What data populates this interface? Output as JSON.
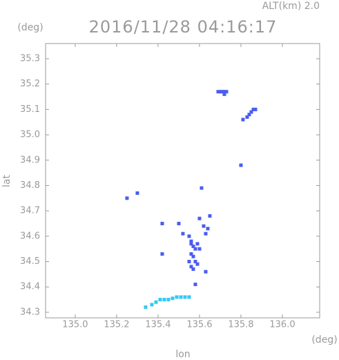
{
  "chart_data": {
    "type": "scatter",
    "header": "ALT(km) 2.0",
    "title": "2016/11/28 04:16:17",
    "y_unit": "(deg)",
    "x_unit": "(deg)",
    "xlabel": "lon",
    "ylabel": "lat",
    "xlim": [
      134.857,
      136.18
    ],
    "ylim": [
      34.278,
      35.36
    ],
    "xticks": [
      {
        "value": 135,
        "label": "135.0"
      },
      135.2,
      135.4,
      135.6,
      135.8,
      {
        "value": 136,
        "label": "136.0"
      }
    ],
    "yticks": [
      35.3,
      35.2,
      35.1,
      {
        "value": 35,
        "label": "35.0"
      },
      34.9,
      34.8,
      34.7,
      34.6,
      34.5,
      34.4,
      34.3
    ],
    "series": [
      {
        "color": "#4a5cf2",
        "x": [
          135.69,
          135.7,
          135.71,
          135.72,
          135.73,
          135.72,
          135.81,
          135.83,
          135.84,
          135.85,
          135.86,
          135.87,
          135.8,
          135.61,
          135.25,
          135.3,
          135.42,
          135.5,
          135.52,
          135.6,
          135.62,
          135.64,
          135.65,
          135.63,
          135.55,
          135.56,
          135.57,
          135.58,
          135.59,
          135.56,
          135.57,
          135.58,
          135.55,
          135.56,
          135.57,
          135.59,
          135.6,
          135.56,
          135.42,
          135.63,
          135.58
        ],
        "values": [
          35.17,
          35.17,
          35.17,
          35.17,
          35.17,
          35.16,
          35.06,
          35.07,
          35.08,
          35.09,
          35.1,
          35.1,
          34.88,
          34.79,
          34.75,
          34.77,
          34.65,
          34.65,
          34.61,
          34.67,
          34.64,
          34.63,
          34.68,
          34.61,
          34.6,
          34.58,
          34.56,
          34.55,
          34.57,
          34.53,
          34.52,
          34.5,
          34.5,
          34.48,
          34.47,
          34.49,
          34.55,
          34.57,
          34.53,
          34.46,
          34.41
        ]
      },
      {
        "color": "#33c8f5",
        "x": [
          135.34,
          135.37,
          135.39,
          135.41,
          135.43,
          135.45,
          135.47,
          135.49,
          135.51,
          135.53,
          135.55
        ],
        "values": [
          34.32,
          34.33,
          34.34,
          34.35,
          34.35,
          34.35,
          34.355,
          34.36,
          34.36,
          34.36,
          34.36
        ]
      }
    ]
  }
}
